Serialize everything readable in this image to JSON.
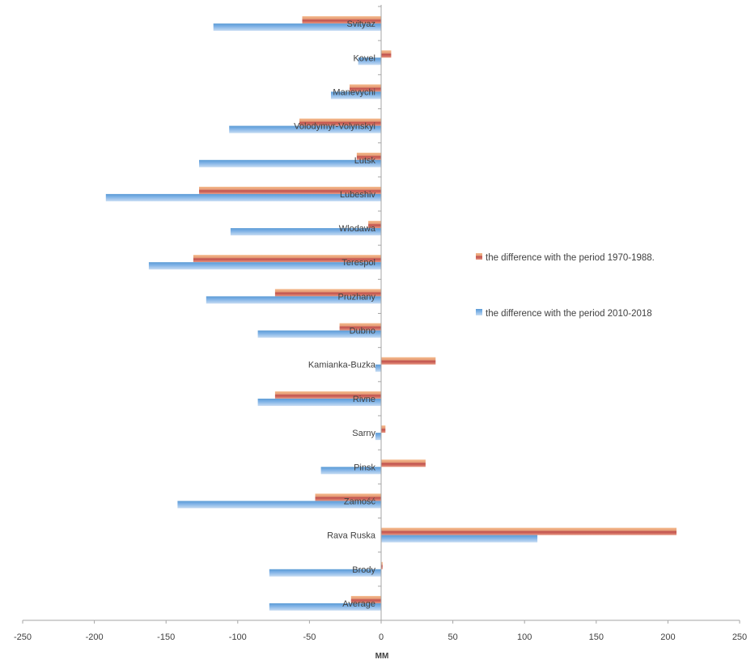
{
  "chart_data": {
    "type": "bar",
    "orientation": "horizontal",
    "categories": [
      "Svityaz",
      "Kovel",
      "Manevychi",
      "Volodymyr-Volynskyi",
      "Lutsk",
      "Lubeshiv",
      "Wlodawa",
      "Terespol",
      "Pruzhany",
      "Dubno",
      "Kamianka-Buzka",
      "Rivne",
      "Sarny",
      "Pinsk",
      "Zamość",
      "Rava Ruska",
      "Brody",
      "Average"
    ],
    "series": [
      {
        "name": "the difference with the period 1970-1988.",
        "color": "#c0504d",
        "values": [
          -55,
          7,
          -22,
          -57,
          -17,
          -127,
          -9,
          -131,
          -74,
          -29,
          38,
          -74,
          3,
          31,
          -46,
          206,
          1,
          -21
        ]
      },
      {
        "name": "the difference with the period 2010-2018",
        "color": "#4f81bd",
        "values": [
          -117,
          -16,
          -35,
          -106,
          -127,
          -192,
          -105,
          -162,
          -122,
          -86,
          -4,
          -86,
          -4,
          -42,
          -142,
          109,
          -78,
          -78
        ]
      }
    ],
    "xlim": [
      -250,
      250
    ],
    "xticks": [
      "-250",
      "-200",
      "-150",
      "-100",
      "-50",
      "0",
      "50",
      "100",
      "150",
      "200",
      "250"
    ],
    "xlabel": "MM",
    "ylabel": "",
    "title": "",
    "grid": false,
    "legend_position": "right"
  }
}
